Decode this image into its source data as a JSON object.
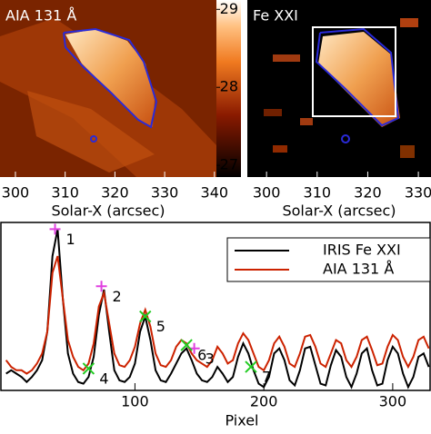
{
  "chart_data": [
    {
      "type": "image",
      "title": "AIA 131 Å",
      "xlabel": "Solar-X (arcsec)",
      "xlim": [
        296.9,
        340.4
      ],
      "xticks": [
        300,
        310,
        320,
        330,
        340
      ],
      "clim": [
        26.85,
        29.12
      ],
      "cticks": [
        27,
        28,
        29
      ]
    },
    {
      "type": "image",
      "title": "Fe XXI",
      "xlabel": "Solar-X (arcsec)",
      "xlim": [
        296.2,
        332.5
      ],
      "xticks": [
        300,
        310,
        320,
        330
      ]
    },
    {
      "type": "line",
      "xlabel": "Pixel",
      "xlim": [
        -4,
        329
      ],
      "ylim": [
        0,
        1
      ],
      "xticks": [
        100,
        200,
        300
      ],
      "x": [
        0,
        4,
        8,
        12,
        16,
        20,
        24,
        28,
        32,
        36,
        40,
        44,
        48,
        52,
        56,
        60,
        64,
        68,
        72,
        76,
        80,
        84,
        88,
        92,
        96,
        100,
        104,
        108,
        112,
        116,
        120,
        124,
        128,
        132,
        136,
        140,
        144,
        148,
        152,
        156,
        160,
        164,
        168,
        172,
        176,
        180,
        184,
        188,
        192,
        196,
        200,
        204,
        208,
        212,
        216,
        220,
        224,
        228,
        232,
        236,
        240,
        244,
        248,
        252,
        256,
        260,
        264,
        268,
        272,
        276,
        280,
        284,
        288,
        292,
        296,
        300,
        304,
        308,
        312,
        316,
        320,
        324,
        328
      ],
      "series": [
        {
          "name": "IRIS Fe XXI",
          "color": "#000000",
          "values": [
            0.1,
            0.12,
            0.1,
            0.08,
            0.05,
            0.08,
            0.12,
            0.18,
            0.35,
            0.8,
            0.96,
            0.55,
            0.22,
            0.1,
            0.05,
            0.04,
            0.08,
            0.2,
            0.45,
            0.6,
            0.35,
            0.12,
            0.06,
            0.05,
            0.08,
            0.16,
            0.35,
            0.44,
            0.3,
            0.12,
            0.06,
            0.05,
            0.1,
            0.16,
            0.22,
            0.25,
            0.18,
            0.1,
            0.06,
            0.05,
            0.08,
            0.14,
            0.1,
            0.05,
            0.08,
            0.2,
            0.28,
            0.22,
            0.12,
            0.04,
            0.02,
            0.08,
            0.22,
            0.25,
            0.18,
            0.06,
            0.03,
            0.12,
            0.25,
            0.26,
            0.15,
            0.04,
            0.03,
            0.15,
            0.24,
            0.2,
            0.08,
            0.02,
            0.1,
            0.22,
            0.25,
            0.12,
            0.03,
            0.04,
            0.18,
            0.26,
            0.22,
            0.1,
            0.02,
            0.08,
            0.2,
            0.22,
            0.14
          ]
        },
        {
          "name": "AIA 131 Å",
          "color": "#cc2200",
          "values": [
            0.18,
            0.14,
            0.12,
            0.12,
            0.1,
            0.12,
            0.16,
            0.22,
            0.35,
            0.7,
            0.8,
            0.55,
            0.3,
            0.2,
            0.14,
            0.12,
            0.16,
            0.28,
            0.5,
            0.58,
            0.4,
            0.22,
            0.15,
            0.14,
            0.18,
            0.26,
            0.4,
            0.48,
            0.38,
            0.22,
            0.15,
            0.14,
            0.18,
            0.26,
            0.3,
            0.28,
            0.22,
            0.18,
            0.16,
            0.14,
            0.18,
            0.26,
            0.22,
            0.16,
            0.18,
            0.28,
            0.34,
            0.3,
            0.22,
            0.14,
            0.12,
            0.18,
            0.28,
            0.32,
            0.26,
            0.16,
            0.14,
            0.22,
            0.32,
            0.33,
            0.26,
            0.16,
            0.14,
            0.22,
            0.3,
            0.28,
            0.18,
            0.14,
            0.2,
            0.3,
            0.32,
            0.24,
            0.15,
            0.16,
            0.26,
            0.33,
            0.3,
            0.2,
            0.14,
            0.2,
            0.3,
            0.32,
            0.25
          ]
        }
      ],
      "markers": [
        {
          "label": "1",
          "x": 38,
          "y": 0.96,
          "color": "#e040e0",
          "symbol": "plus"
        },
        {
          "label": "2",
          "x": 74,
          "y": 0.62,
          "color": "#e040e0",
          "symbol": "plus"
        },
        {
          "label": "3",
          "x": 146,
          "y": 0.25,
          "color": "#e040e0",
          "symbol": "plus"
        },
        {
          "label": "4",
          "x": 64,
          "y": 0.13,
          "color": "#22cc22",
          "symbol": "cross"
        },
        {
          "label": "5",
          "x": 108,
          "y": 0.44,
          "color": "#22cc22",
          "symbol": "cross"
        },
        {
          "label": "6",
          "x": 140,
          "y": 0.27,
          "color": "#22cc22",
          "symbol": "cross"
        },
        {
          "label": "7",
          "x": 190,
          "y": 0.14,
          "color": "#22cc22",
          "symbol": "cross"
        }
      ]
    }
  ]
}
